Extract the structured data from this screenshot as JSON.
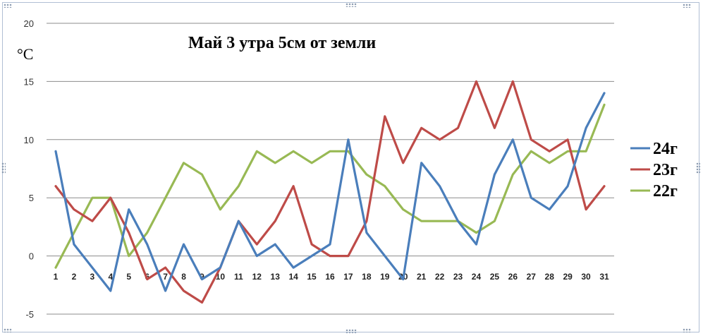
{
  "chart_data": {
    "type": "line",
    "title": "Май 3 утра 5см от земли",
    "ylabel": "°C",
    "xlabel": "",
    "ylim": [
      -5,
      20
    ],
    "yticks": [
      -5,
      0,
      5,
      10,
      15,
      20
    ],
    "grid": true,
    "legend_position": "right",
    "x": [
      1,
      2,
      3,
      4,
      5,
      6,
      7,
      8,
      9,
      10,
      11,
      12,
      13,
      14,
      15,
      16,
      17,
      18,
      19,
      20,
      21,
      22,
      23,
      24,
      25,
      26,
      27,
      28,
      29,
      30,
      31
    ],
    "series": [
      {
        "name": "24г",
        "color": "#4a7ebb",
        "values": [
          9,
          1,
          -1,
          -3,
          4,
          1,
          -3,
          1,
          -2,
          -1,
          3,
          0,
          1,
          -1,
          0,
          1,
          10,
          2,
          0,
          -2,
          8,
          6,
          3,
          1,
          7,
          10,
          5,
          4,
          6,
          11,
          14
        ]
      },
      {
        "name": "23г",
        "color": "#be4b48",
        "values": [
          6,
          4,
          3,
          5,
          2,
          -2,
          -1,
          -3,
          -4,
          -1,
          3,
          1,
          3,
          6,
          1,
          0,
          0,
          3,
          12,
          8,
          11,
          10,
          11,
          15,
          11,
          15,
          10,
          9,
          10,
          4,
          6
        ]
      },
      {
        "name": "22г",
        "color": "#98b954",
        "values": [
          -1,
          2,
          5,
          5,
          0,
          2,
          5,
          8,
          7,
          4,
          6,
          9,
          8,
          9,
          8,
          9,
          9,
          7,
          6,
          4,
          3,
          3,
          3,
          2,
          3,
          7,
          9,
          8,
          9,
          9,
          13
        ]
      }
    ]
  }
}
